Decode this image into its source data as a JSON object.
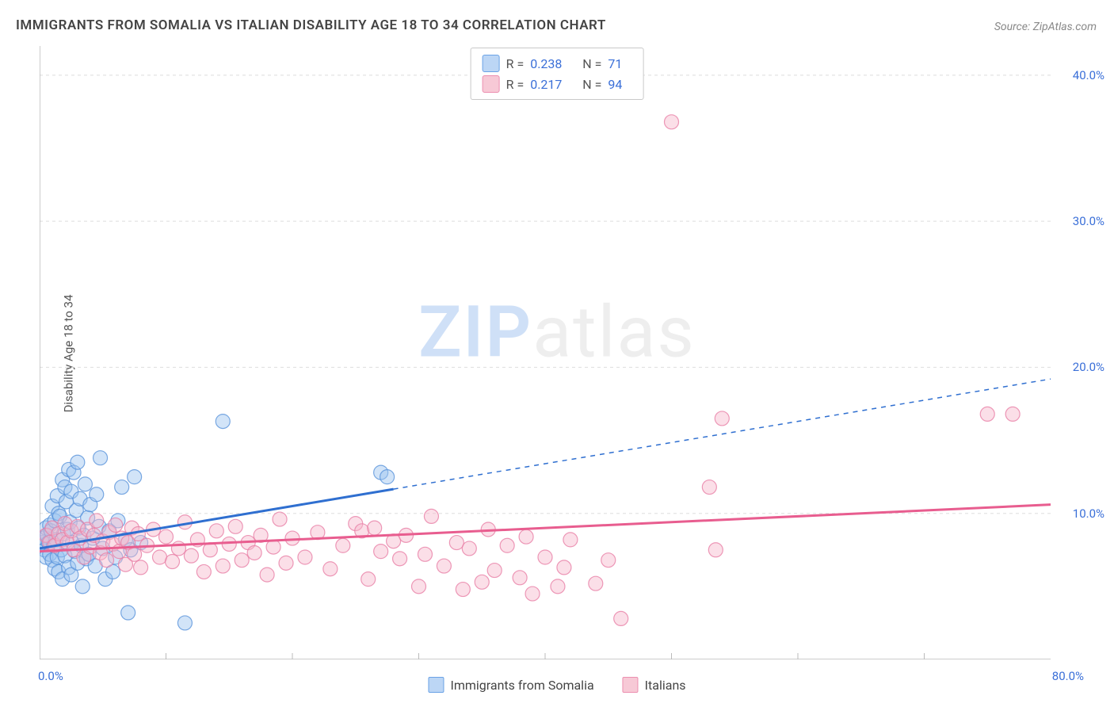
{
  "title": "IMMIGRANTS FROM SOMALIA VS ITALIAN DISABILITY AGE 18 TO 34 CORRELATION CHART",
  "source": "Source: ZipAtlas.com",
  "ylabel": "Disability Age 18 to 34",
  "watermark": {
    "part1": "ZIP",
    "part2": "atlas"
  },
  "chart": {
    "type": "scatter-with-regression",
    "background_color": "#ffffff",
    "grid_color": "#dddddd",
    "axis_color": "#bbbbbb",
    "xlim": [
      0,
      80
    ],
    "ylim": [
      0,
      42
    ],
    "x_ticks": [
      0,
      80
    ],
    "x_tick_labels": [
      "0.0%",
      "80.0%"
    ],
    "x_minor_tick_step": 10,
    "y_ticks": [
      10,
      20,
      30,
      40
    ],
    "y_tick_labels": [
      "10.0%",
      "20.0%",
      "30.0%",
      "40.0%"
    ],
    "tick_label_color": "#3a6fd8",
    "tick_label_fontsize": 15,
    "marker_radius": 9,
    "marker_opacity": 0.45,
    "series": [
      {
        "name": "Immigrants from Somalia",
        "swatch_fill": "#bcd6f5",
        "swatch_border": "#6aa2e6",
        "marker_fill": "#9cc4ef",
        "marker_stroke": "#5a93db",
        "trend_color": "#2f6fd0",
        "trend_width": 3,
        "trend_solid_xmax": 28,
        "trend": {
          "x1": 0,
          "y1": 7.6,
          "x2": 80,
          "y2": 19.2
        },
        "R": "0.238",
        "N": "71",
        "points": [
          [
            0.2,
            8.0
          ],
          [
            0.3,
            8.3
          ],
          [
            0.4,
            7.5
          ],
          [
            0.5,
            9.0
          ],
          [
            0.5,
            7.0
          ],
          [
            0.6,
            8.5
          ],
          [
            0.7,
            8.0
          ],
          [
            0.8,
            9.2
          ],
          [
            0.8,
            7.2
          ],
          [
            0.9,
            8.8
          ],
          [
            1.0,
            6.8
          ],
          [
            1.0,
            10.5
          ],
          [
            1.1,
            7.8
          ],
          [
            1.2,
            9.5
          ],
          [
            1.2,
            6.2
          ],
          [
            1.3,
            8.2
          ],
          [
            1.4,
            11.2
          ],
          [
            1.4,
            7.0
          ],
          [
            1.5,
            10.0
          ],
          [
            1.5,
            6.0
          ],
          [
            1.6,
            9.8
          ],
          [
            1.7,
            7.5
          ],
          [
            1.8,
            12.3
          ],
          [
            1.8,
            5.5
          ],
          [
            1.9,
            8.6
          ],
          [
            2.0,
            11.8
          ],
          [
            2.0,
            7.1
          ],
          [
            2.1,
            10.8
          ],
          [
            2.2,
            8.9
          ],
          [
            2.3,
            13.0
          ],
          [
            2.3,
            6.3
          ],
          [
            2.4,
            9.4
          ],
          [
            2.5,
            5.8
          ],
          [
            2.5,
            11.5
          ],
          [
            2.6,
            8.0
          ],
          [
            2.7,
            12.8
          ],
          [
            2.8,
            7.4
          ],
          [
            2.9,
            10.2
          ],
          [
            3.0,
            6.6
          ],
          [
            3.0,
            13.5
          ],
          [
            3.1,
            9.0
          ],
          [
            3.2,
            11.0
          ],
          [
            3.3,
            7.8
          ],
          [
            3.4,
            5.0
          ],
          [
            3.5,
            8.5
          ],
          [
            3.6,
            12.0
          ],
          [
            3.7,
            6.9
          ],
          [
            3.8,
            9.7
          ],
          [
            3.9,
            7.2
          ],
          [
            4.0,
            10.6
          ],
          [
            4.2,
            8.3
          ],
          [
            4.4,
            6.4
          ],
          [
            4.5,
            11.3
          ],
          [
            4.7,
            9.1
          ],
          [
            4.8,
            13.8
          ],
          [
            5.0,
            7.6
          ],
          [
            5.2,
            5.5
          ],
          [
            5.5,
            8.8
          ],
          [
            5.8,
            6.0
          ],
          [
            6.0,
            7.0
          ],
          [
            6.2,
            9.5
          ],
          [
            6.5,
            11.8
          ],
          [
            6.8,
            8.2
          ],
          [
            7.0,
            3.2
          ],
          [
            7.2,
            7.5
          ],
          [
            7.5,
            12.5
          ],
          [
            8.0,
            8.0
          ],
          [
            11.5,
            2.5
          ],
          [
            14.5,
            16.3
          ],
          [
            27.0,
            12.8
          ],
          [
            27.5,
            12.5
          ]
        ]
      },
      {
        "name": "Italians",
        "swatch_fill": "#f7c9d6",
        "swatch_border": "#ec8fb0",
        "marker_fill": "#f7b8cc",
        "marker_stroke": "#e87fa6",
        "trend_color": "#e85d8f",
        "trend_width": 3,
        "trend_solid_xmax": 80,
        "trend": {
          "x1": 0,
          "y1": 7.4,
          "x2": 80,
          "y2": 10.6
        },
        "R": "0.217",
        "N": "94",
        "points": [
          [
            0.5,
            8.5
          ],
          [
            0.8,
            8.0
          ],
          [
            1.0,
            9.0
          ],
          [
            1.2,
            7.8
          ],
          [
            1.5,
            8.6
          ],
          [
            1.8,
            8.2
          ],
          [
            2.0,
            9.3
          ],
          [
            2.2,
            8.0
          ],
          [
            2.5,
            8.8
          ],
          [
            2.7,
            7.5
          ],
          [
            3.0,
            9.1
          ],
          [
            3.2,
            8.3
          ],
          [
            3.5,
            7.0
          ],
          [
            3.8,
            8.9
          ],
          [
            4.0,
            7.7
          ],
          [
            4.3,
            8.5
          ],
          [
            4.5,
            9.5
          ],
          [
            4.8,
            7.3
          ],
          [
            5.0,
            8.1
          ],
          [
            5.3,
            6.8
          ],
          [
            5.5,
            8.7
          ],
          [
            5.8,
            7.9
          ],
          [
            6.0,
            9.2
          ],
          [
            6.3,
            7.4
          ],
          [
            6.5,
            8.3
          ],
          [
            6.8,
            6.5
          ],
          [
            7.0,
            8.0
          ],
          [
            7.3,
            9.0
          ],
          [
            7.5,
            7.2
          ],
          [
            7.8,
            8.6
          ],
          [
            8.0,
            6.3
          ],
          [
            8.5,
            7.8
          ],
          [
            9.0,
            8.9
          ],
          [
            9.5,
            7.0
          ],
          [
            10.0,
            8.4
          ],
          [
            10.5,
            6.7
          ],
          [
            11.0,
            7.6
          ],
          [
            11.5,
            9.4
          ],
          [
            12.0,
            7.1
          ],
          [
            12.5,
            8.2
          ],
          [
            13.0,
            6.0
          ],
          [
            13.5,
            7.5
          ],
          [
            14.0,
            8.8
          ],
          [
            14.5,
            6.4
          ],
          [
            15.0,
            7.9
          ],
          [
            15.5,
            9.1
          ],
          [
            16.0,
            6.8
          ],
          [
            16.5,
            8.0
          ],
          [
            17.0,
            7.3
          ],
          [
            17.5,
            8.5
          ],
          [
            18.0,
            5.8
          ],
          [
            18.5,
            7.7
          ],
          [
            19.0,
            9.6
          ],
          [
            19.5,
            6.6
          ],
          [
            20.0,
            8.3
          ],
          [
            21.0,
            7.0
          ],
          [
            22.0,
            8.7
          ],
          [
            23.0,
            6.2
          ],
          [
            24.0,
            7.8
          ],
          [
            25.0,
            9.3
          ],
          [
            25.5,
            8.8
          ],
          [
            26.0,
            5.5
          ],
          [
            26.5,
            9.0
          ],
          [
            27.0,
            7.4
          ],
          [
            28.0,
            8.1
          ],
          [
            28.5,
            6.9
          ],
          [
            29.0,
            8.5
          ],
          [
            30.0,
            5.0
          ],
          [
            30.5,
            7.2
          ],
          [
            31.0,
            9.8
          ],
          [
            32.0,
            6.4
          ],
          [
            33.0,
            8.0
          ],
          [
            33.5,
            4.8
          ],
          [
            34.0,
            7.6
          ],
          [
            35.0,
            5.3
          ],
          [
            35.5,
            8.9
          ],
          [
            36.0,
            6.1
          ],
          [
            37.0,
            7.8
          ],
          [
            38.0,
            5.6
          ],
          [
            38.5,
            8.4
          ],
          [
            39.0,
            4.5
          ],
          [
            40.0,
            7.0
          ],
          [
            41.0,
            5.0
          ],
          [
            41.5,
            6.3
          ],
          [
            42.0,
            8.2
          ],
          [
            44.0,
            5.2
          ],
          [
            45.0,
            6.8
          ],
          [
            46.0,
            2.8
          ],
          [
            50.0,
            36.8
          ],
          [
            53.0,
            11.8
          ],
          [
            54.0,
            16.5
          ],
          [
            75.0,
            16.8
          ],
          [
            77.0,
            16.8
          ],
          [
            53.5,
            7.5
          ]
        ]
      }
    ]
  },
  "top_legend_rows": [
    {
      "swatch_fill": "#bcd6f5",
      "swatch_border": "#6aa2e6",
      "r_label": "R =",
      "r_val": "0.238",
      "n_label": "N =",
      "n_val": "71"
    },
    {
      "swatch_fill": "#f7c9d6",
      "swatch_border": "#ec8fb0",
      "r_label": "R =",
      "r_val": "0.217",
      "n_label": "N =",
      "n_val": "94"
    }
  ],
  "bottom_legend": [
    {
      "swatch_fill": "#bcd6f5",
      "swatch_border": "#6aa2e6",
      "label": "Immigrants from Somalia"
    },
    {
      "swatch_fill": "#f7c9d6",
      "swatch_border": "#ec8fb0",
      "label": "Italians"
    }
  ]
}
